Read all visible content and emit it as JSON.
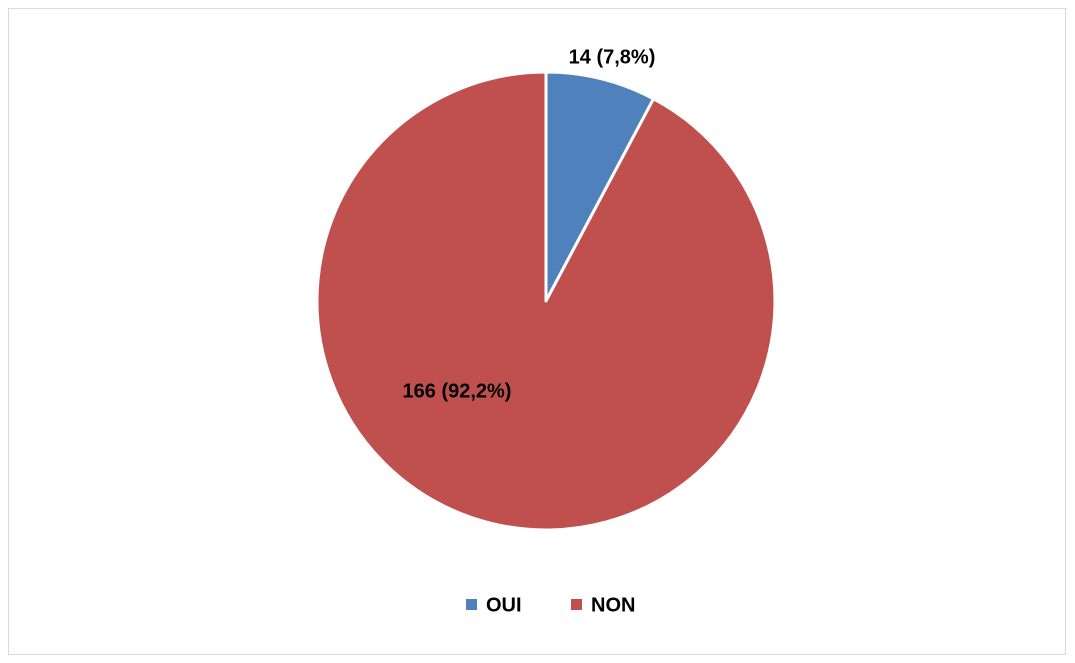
{
  "chart_data": {
    "type": "pie",
    "categories": [
      "OUI",
      "NON"
    ],
    "values": [
      14,
      166
    ],
    "value_labels": [
      "14 (7,8%)",
      "166 (92,2%)"
    ],
    "colors": [
      "#4f81bd",
      "#c0504d"
    ],
    "legend": "bottom"
  }
}
